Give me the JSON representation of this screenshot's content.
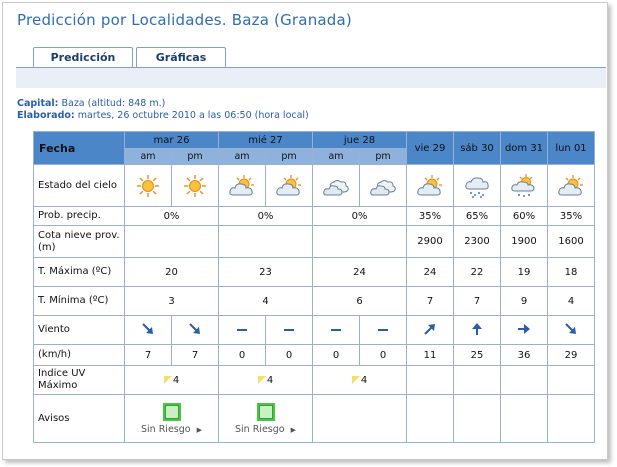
{
  "title": "Predicción por Localidades. Baza (Granada)",
  "tabs": [
    {
      "label": "Predicción",
      "active": true
    },
    {
      "label": "Gráficas",
      "active": false
    }
  ],
  "info": {
    "capital_label": "Capital:",
    "capital_value": "Baza (altitud: 848 m.)",
    "elaborado_label": "Elaborado:",
    "elaborado_value": "martes, 26 octubre 2010 a las 06:50 (hora local)"
  },
  "table": {
    "fecha_label": "Fecha",
    "days": [
      {
        "label": "mar 26",
        "split": true
      },
      {
        "label": "mié 27",
        "split": true
      },
      {
        "label": "jue 28",
        "split": true
      },
      {
        "label": "vie 29",
        "split": false
      },
      {
        "label": "sáb 30",
        "split": false
      },
      {
        "label": "dom 31",
        "split": false
      },
      {
        "label": "lun 01",
        "split": false
      }
    ],
    "am": "am",
    "pm": "pm",
    "row_labels": {
      "estado": "Estado del cielo",
      "prob": "Prob. precip.",
      "cota": "Cota nieve prov.(m)",
      "tmax": "T. Máxima (ºC)",
      "tmin": "T. Mínima (ºC)",
      "viento": "Viento",
      "kmh": "(km/h)",
      "uv": "Indice UV Máximo",
      "avisos": "Avisos"
    },
    "sky_icons": [
      "sun-icon",
      "sun-icon",
      "sun-cloud-icon",
      "sun-cloud-icon",
      "cloud-icon",
      "cloud-icon",
      "sun-cloud-icon",
      "rain-cloud-icon",
      "sun-rain-icon",
      "sun-cloud-icon"
    ],
    "prob": [
      "0%",
      "0%",
      "0%",
      "35%",
      "65%",
      "60%",
      "35%"
    ],
    "cota": [
      "",
      "",
      "",
      "2900",
      "2300",
      "1900",
      "1600"
    ],
    "tmax": [
      "20",
      "23",
      "24",
      "24",
      "22",
      "19",
      "18"
    ],
    "tmin": [
      "3",
      "4",
      "6",
      "7",
      "7",
      "9",
      "4"
    ],
    "wind_icons": [
      "arrow-se-icon",
      "arrow-se-icon",
      "calm-icon",
      "calm-icon",
      "calm-icon",
      "calm-icon",
      "arrow-ne-icon",
      "arrow-n-icon",
      "arrow-e-icon",
      "arrow-se-icon"
    ],
    "kmh": [
      "7",
      "7",
      "0",
      "0",
      "0",
      "0",
      "11",
      "25",
      "36",
      "29"
    ],
    "uv": [
      "4",
      "4",
      "4",
      "",
      "",
      "",
      ""
    ],
    "aviso_label": "Sin Riesgo",
    "colors": {
      "header": "#4a86c8",
      "subheader": "#8fb2dc",
      "border": "#9ab1d3",
      "hot": "#d21414",
      "cold": "#2b69b8"
    }
  }
}
